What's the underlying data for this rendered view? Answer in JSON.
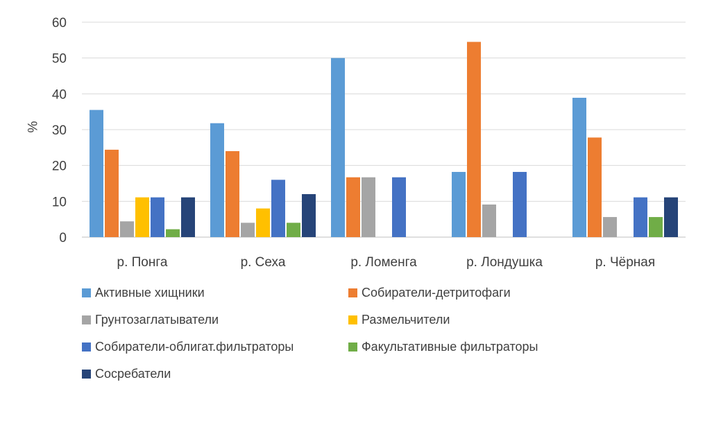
{
  "chart_data": {
    "type": "bar",
    "title": "",
    "xlabel": "",
    "ylabel": "%",
    "ylim": [
      0,
      60
    ],
    "yticks": [
      0,
      10,
      20,
      30,
      40,
      50,
      60
    ],
    "grid": true,
    "legend_position": "bottom",
    "categories": [
      "р. Понга",
      "р. Сеха",
      "р. Ломенга",
      "р. Лондушка",
      "р. Чёрная"
    ],
    "series": [
      {
        "name": "Активные хищники",
        "color": "#5B9BD5",
        "values": [
          35.5,
          31.8,
          50.0,
          18.2,
          38.9
        ]
      },
      {
        "name": "Собиратели-детритофаги",
        "color": "#ED7D31",
        "values": [
          24.4,
          24.0,
          16.7,
          54.5,
          27.8
        ]
      },
      {
        "name": "Грунтозаглатыватели",
        "color": "#A5A5A5",
        "values": [
          4.4,
          4.0,
          16.7,
          9.1,
          5.6
        ]
      },
      {
        "name": "Размельчители",
        "color": "#FFC000",
        "values": [
          11.1,
          8.0,
          0,
          0,
          0
        ]
      },
      {
        "name": "Собиратели-облигат.фильтраторы",
        "color": "#4472C4",
        "values": [
          11.1,
          16.0,
          16.7,
          18.2,
          11.1
        ]
      },
      {
        "name": "Факультативные фильтраторы",
        "color": "#70AD47",
        "values": [
          2.2,
          4.0,
          0,
          0,
          5.6
        ]
      },
      {
        "name": "Сосребатели",
        "color": "#264478",
        "values": [
          11.1,
          12.0,
          0,
          0,
          11.1
        ]
      }
    ]
  }
}
